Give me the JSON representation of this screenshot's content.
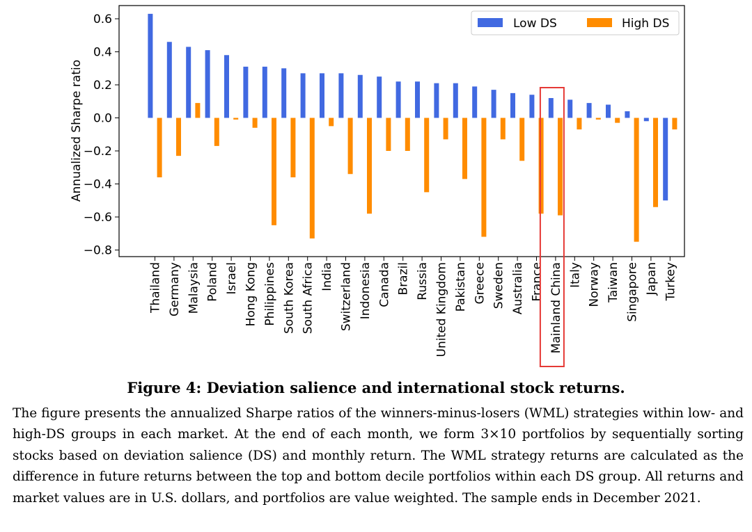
{
  "chart_data": {
    "type": "bar",
    "categories": [
      "Thailand",
      "Germany",
      "Malaysia",
      "Poland",
      "Israel",
      "Hong Kong",
      "Philippines",
      "South Korea",
      "South Africa",
      "India",
      "Switzerland",
      "Indonesia",
      "Canada",
      "Brazil",
      "Russia",
      "United Kingdom",
      "Pakistan",
      "Greece",
      "Sweden",
      "Australia",
      "France",
      "Mainland China",
      "Italy",
      "Norway",
      "Taiwan",
      "Singapore",
      "Japan",
      "Turkey"
    ],
    "series": [
      {
        "name": "Low DS",
        "color": "#4169e1",
        "values": [
          0.63,
          0.46,
          0.43,
          0.41,
          0.38,
          0.31,
          0.31,
          0.3,
          0.27,
          0.27,
          0.27,
          0.26,
          0.25,
          0.22,
          0.22,
          0.21,
          0.21,
          0.19,
          0.17,
          0.15,
          0.14,
          0.12,
          0.11,
          0.09,
          0.08,
          0.04,
          -0.02,
          -0.5
        ]
      },
      {
        "name": "High DS",
        "color": "#ff8c00",
        "values": [
          -0.36,
          -0.23,
          0.09,
          -0.17,
          -0.01,
          -0.06,
          -0.65,
          -0.36,
          -0.73,
          -0.05,
          -0.34,
          -0.58,
          -0.2,
          -0.2,
          -0.45,
          -0.13,
          -0.37,
          -0.72,
          -0.13,
          -0.26,
          -0.58,
          -0.59,
          -0.07,
          -0.01,
          -0.03,
          -0.75,
          -0.54,
          -0.07
        ]
      }
    ],
    "ylabel": "Annualized Sharpe ratio",
    "ylim": [
      -0.84,
      0.68
    ],
    "yticks": [
      "0.6",
      "0.4",
      "0.2",
      "0.0",
      "−0.2",
      "−0.4",
      "−0.6",
      "−0.8"
    ],
    "ytick_values": [
      0.6,
      0.4,
      0.2,
      0.0,
      -0.2,
      -0.4,
      -0.6,
      -0.8
    ],
    "legend_position": "top-right",
    "highlighted_category": "Mainland China",
    "highlight_color": "#e53935"
  },
  "caption": {
    "title": "Figure 4: Deviation salience and international stock returns.",
    "body": "The figure presents the annualized Sharpe ratios of the winners-minus-losers (WML) strategies within low- and high-DS groups in each market. At the end of each month, we form 3×10 portfolios by sequentially sorting stocks based on deviation salience (DS) and monthly return. The WML strategy returns are calculated as the difference in future returns between the top and bottom decile portfolios within each DS group. All returns and market values are in U.S. dollars, and portfolios are value weighted. The sample ends in December 2021."
  }
}
